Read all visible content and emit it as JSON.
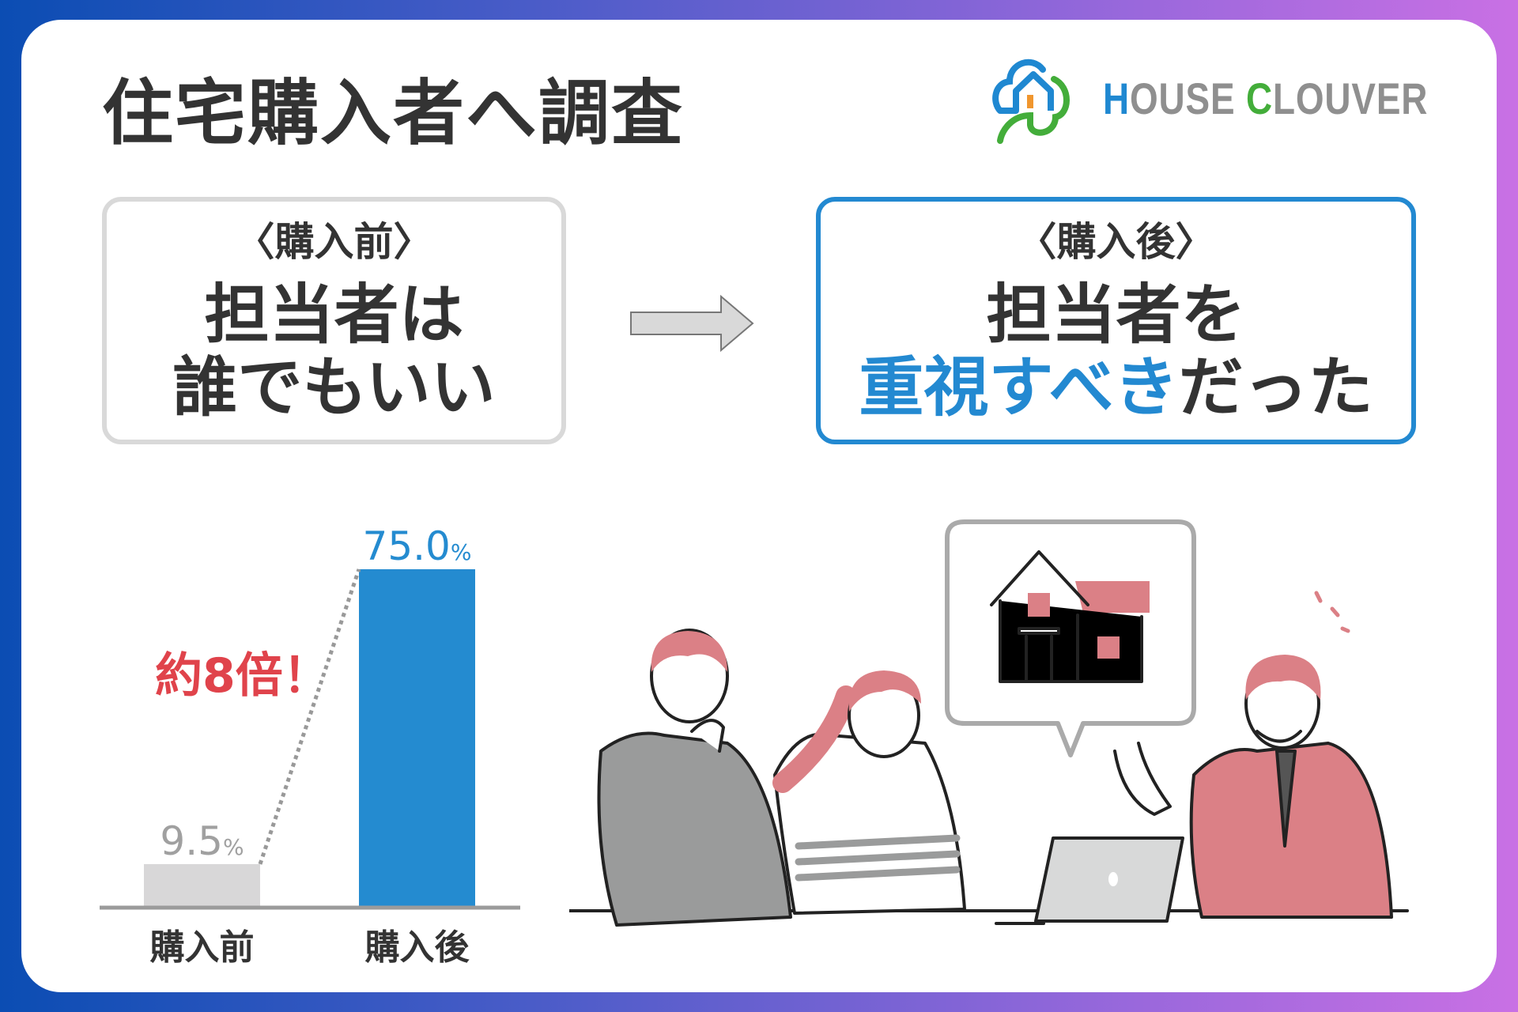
{
  "header": {
    "title": "住宅購入者へ調査"
  },
  "logo": {
    "text_part1": "H",
    "text_part2": "OUSE ",
    "text_part3": "C",
    "text_part4": "LOUVER",
    "icon": "house-cloud-logo-icon",
    "colors": {
      "blue": "#1f88d1",
      "green": "#43ad3a",
      "gray": "#8f8f8f",
      "orange": "#f0962e"
    }
  },
  "before_box": {
    "label": "〈購入前〉",
    "line1": "担当者は",
    "line2": "誰でもいい"
  },
  "arrow": {
    "icon": "right-arrow-icon"
  },
  "after_box": {
    "label": "〈購入後〉",
    "line1": "担当者を",
    "line2_highlight": "重視すべき",
    "line2_rest": "だった"
  },
  "chart_data": {
    "type": "bar",
    "categories": [
      "購入前",
      "購入後"
    ],
    "values": [
      9.5,
      75.0
    ],
    "value_labels": [
      "9.5",
      "75.0"
    ],
    "unit": "%",
    "colors": [
      "#d8d7d8",
      "#248bd0"
    ],
    "label_colors": [
      "#a0a0a0",
      "#248bd0"
    ],
    "annotation": "約8倍！",
    "annotation_color": "#e0434b",
    "ylim": [
      0,
      75
    ],
    "grid": false
  },
  "illustration": {
    "colors": {
      "pink": "#db8086",
      "gray": "#9a9b9b",
      "line": "#222222"
    }
  }
}
